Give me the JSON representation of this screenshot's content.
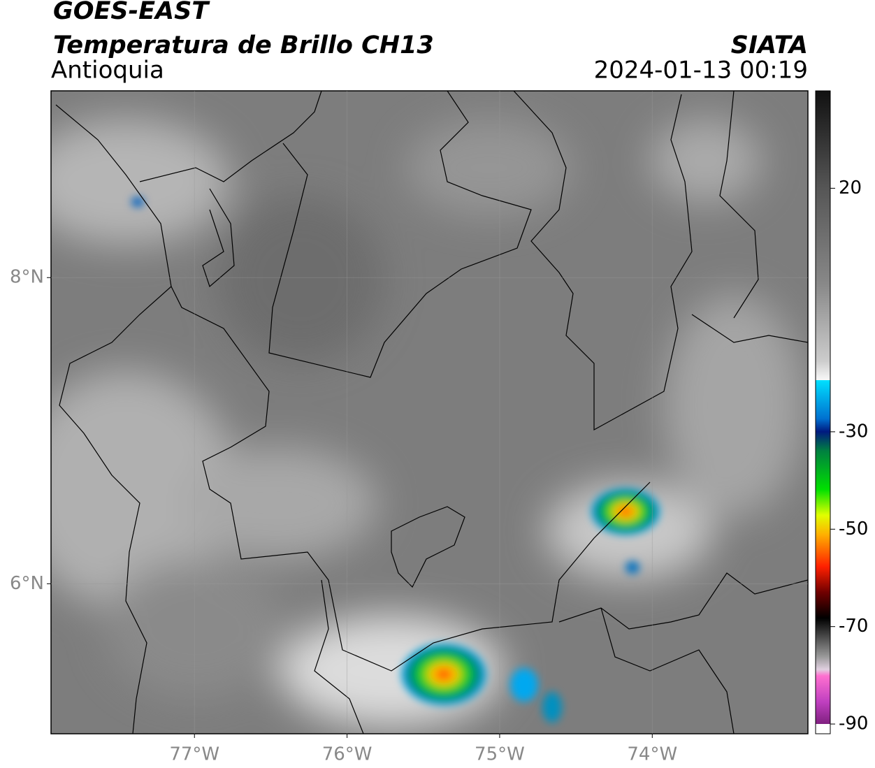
{
  "header": {
    "title": "GOES-EAST",
    "subtitle": "Temperatura de Brillo CH13",
    "region": "Antioquia",
    "source": "SIATA",
    "datetime": "2024-01-13 00:19"
  },
  "map": {
    "lonlim": [
      -77.94,
      -72.98
    ],
    "latlim": [
      5.02,
      9.22
    ],
    "xticks": [
      {
        "value": -77,
        "label": "77°W"
      },
      {
        "value": -76,
        "label": "76°W"
      },
      {
        "value": -75,
        "label": "75°W"
      },
      {
        "value": -74,
        "label": "74°W"
      }
    ],
    "yticks": [
      {
        "value": 8,
        "label": "8°N"
      },
      {
        "value": 6,
        "label": "6°N"
      }
    ]
  },
  "colorbar": {
    "lim": [
      -92,
      40
    ],
    "ticks": [
      20,
      -30,
      -50,
      -70,
      -90
    ]
  }
}
